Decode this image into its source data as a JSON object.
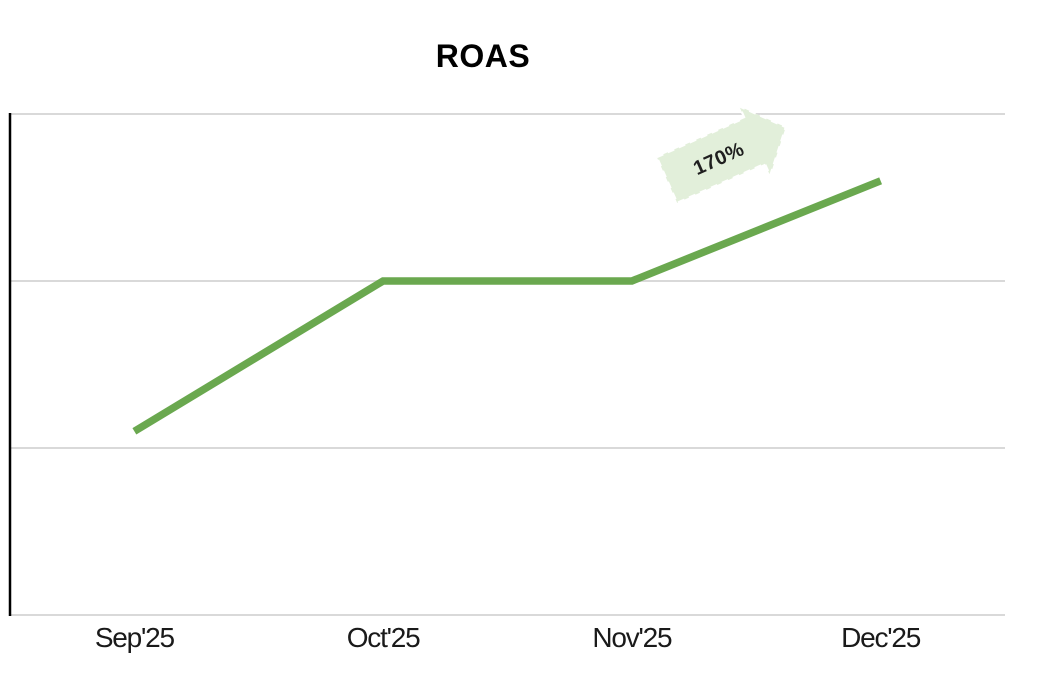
{
  "title": "ROAS",
  "annotation": {
    "label": "170%"
  },
  "colors": {
    "line": "#6aa84f",
    "arrow_fill": "#e2efda",
    "arrow_stroke": "#ffffff",
    "gridline": "#d9d9d9",
    "axis": "#000000",
    "text": "#1a1a1a"
  },
  "chart_data": {
    "type": "line",
    "title": "ROAS",
    "categories": [
      "Sep'25",
      "Oct'25",
      "Nov'25",
      "Dec'25"
    ],
    "values": [
      1.1,
      2.0,
      2.0,
      2.6
    ],
    "xlabel": "",
    "ylabel": "",
    "ylim": [
      0,
      3
    ],
    "gridline_step": 1,
    "grid": true,
    "legend": false,
    "annotations": [
      {
        "text": "170%",
        "shape": "block-arrow-up-right",
        "near": "Dec'25"
      }
    ]
  }
}
